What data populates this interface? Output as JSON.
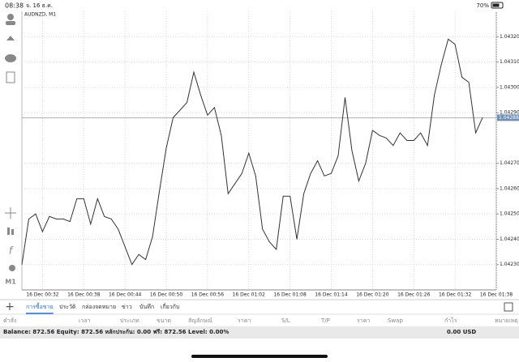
{
  "status_bar": {
    "time": "08:38",
    "date": "จ. 16 ธ.ค.",
    "battery": "70%"
  },
  "chart_data": {
    "type": "line",
    "title": "AUDNZD, M1",
    "color": "#333333",
    "categories": [
      null,
      null,
      null,
      "16 Dec 00:32",
      null,
      null,
      null,
      null,
      null,
      "16 Dec 00:38",
      null,
      null,
      null,
      null,
      null,
      "16 Dec 00:44",
      null,
      null,
      null,
      null,
      null,
      "16 Dec 00:50",
      null,
      null,
      null,
      null,
      null,
      "16 Dec 00:56",
      null,
      null,
      null,
      null,
      null,
      "16 Dec 01:02",
      null,
      null,
      null,
      null,
      null,
      "16 Dec 01:08",
      null,
      null,
      null,
      null,
      null,
      "16 Dec 01:14",
      null,
      null,
      null,
      null,
      null,
      "16 Dec 01:20",
      null,
      null,
      null,
      null,
      null,
      "16 Dec 01:26",
      null,
      null,
      null,
      null,
      null,
      "16 Dec 01:32",
      null,
      null,
      null,
      null,
      null,
      "16 Dec 01:38"
    ],
    "values": [
      1.0423,
      1.04248,
      1.0425,
      1.04243,
      1.04249,
      1.04248,
      1.04248,
      1.04247,
      1.04256,
      1.04256,
      1.04246,
      1.04256,
      1.04249,
      1.04248,
      1.04244,
      1.04237,
      1.0423,
      1.04234,
      1.04232,
      1.04241,
      1.04259,
      1.04276,
      1.04288,
      1.04291,
      1.04294,
      1.04306,
      1.04297,
      1.04289,
      1.04292,
      1.04281,
      1.04258,
      1.04262,
      1.04266,
      1.04274,
      1.04265,
      1.04244,
      1.04239,
      1.04236,
      1.04257,
      1.04257,
      1.0424,
      1.04258,
      1.04266,
      1.04271,
      1.04265,
      1.04266,
      1.04273,
      1.04296,
      1.04275,
      1.04263,
      1.0427,
      1.04283,
      1.04281,
      1.0428,
      1.04277,
      1.04282,
      1.04279,
      1.04279,
      1.04282,
      1.04277,
      1.04297,
      1.04309,
      1.04319,
      1.04317,
      1.04304,
      1.04302,
      1.04282,
      1.04288,
      null,
      null
    ],
    "ylim": [
      1.0422,
      1.0433
    ],
    "yticks": [
      {
        "value": 1.0423,
        "label": "1.04230"
      },
      {
        "value": 1.0424,
        "label": "1.04240"
      },
      {
        "value": 1.0425,
        "label": "1.04250"
      },
      {
        "value": 1.0426,
        "label": "1.04260"
      },
      {
        "value": 1.0427,
        "label": "1.04270"
      },
      {
        "value": 1.0429,
        "label": "1.04290"
      },
      {
        "value": 1.043,
        "label": "1.04300"
      },
      {
        "value": 1.0431,
        "label": "1.04310"
      },
      {
        "value": 1.0432,
        "label": "1.04320"
      }
    ],
    "grid": true,
    "current_price": {
      "value": 1.04288,
      "label": "1.04288"
    }
  },
  "left_toolbar": {
    "timeframe": "M1"
  },
  "tabs": [
    "การซื้อขาย",
    "ประวัติ",
    "กล่องจดหมาย",
    "ข่าว",
    "บันทึก",
    "เกี่ยวกับ"
  ],
  "active_tab": 0,
  "table": {
    "columns": [
      "คำสั่ง",
      "เวลา",
      "ประเภท",
      "ขนาด",
      "สัญลักษณ์",
      "ราคา",
      "S/L",
      "T/P",
      "ราคา",
      "Swap",
      "กำไร",
      "หมายเหตุ"
    ]
  },
  "footer": {
    "summary": "Balance: 872.56 Equity: 872.56 หลักประกัน: 0.00 ฟรี: 872.56 Level: 0.00%",
    "total": "0.00 USD"
  }
}
